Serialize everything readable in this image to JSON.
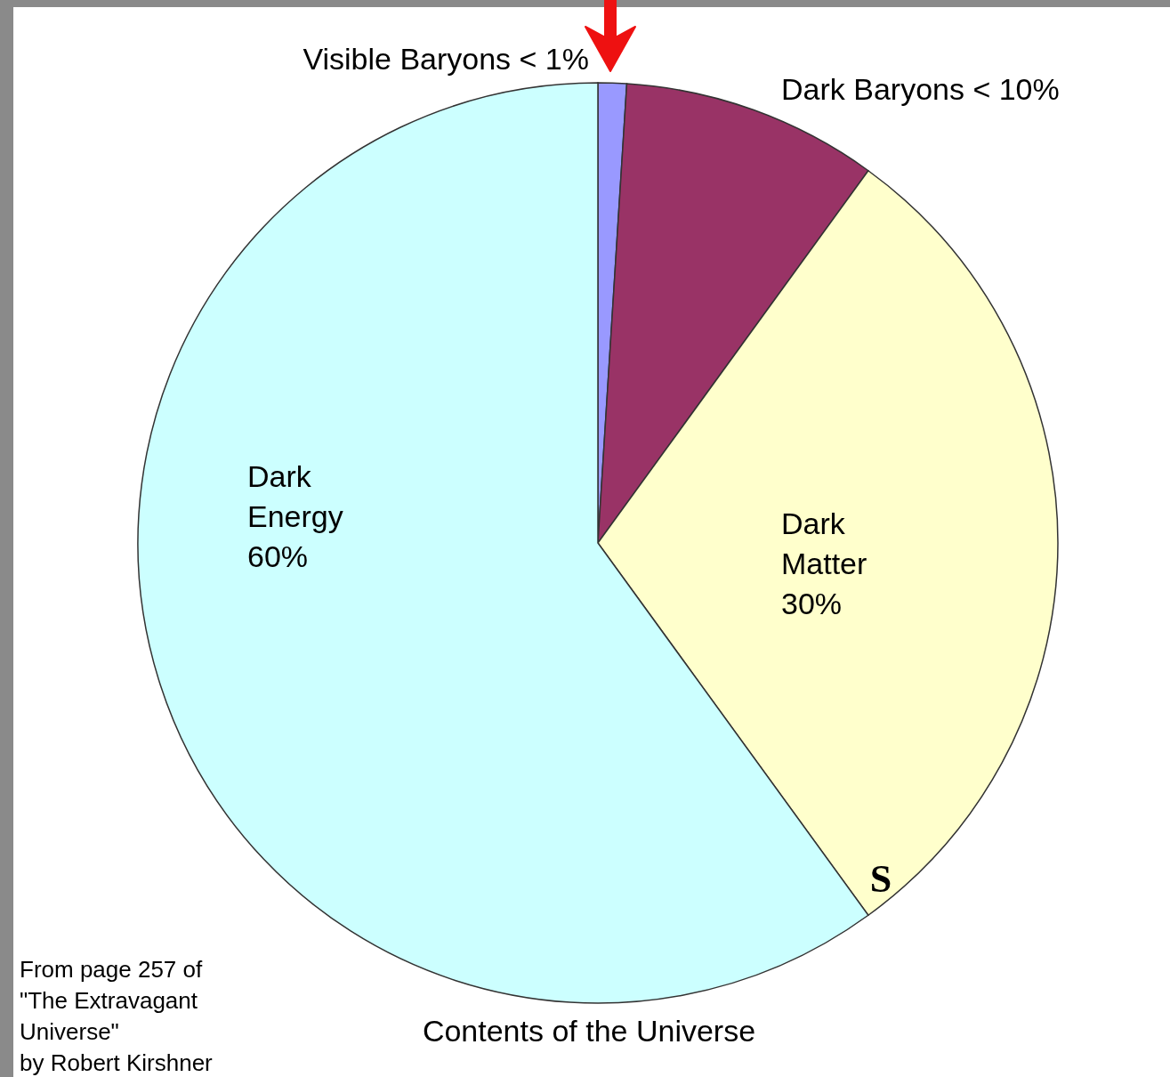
{
  "chart_data": {
    "type": "pie",
    "title": "Contents of the Universe",
    "categories": [
      "Visible Baryons",
      "Dark Baryons",
      "Dark Matter",
      "Dark Energy"
    ],
    "values": [
      1,
      9,
      30,
      60
    ],
    "value_labels": [
      "< 1%",
      "< 10%",
      "30%",
      "60%"
    ],
    "colors": [
      "#9999ff",
      "#993366",
      "#ffffcc",
      "#ccffff"
    ],
    "annotations": [
      "S",
      "From page 257 of \"The Extravagant Universe\" by Robert Kirshner"
    ]
  }
}
